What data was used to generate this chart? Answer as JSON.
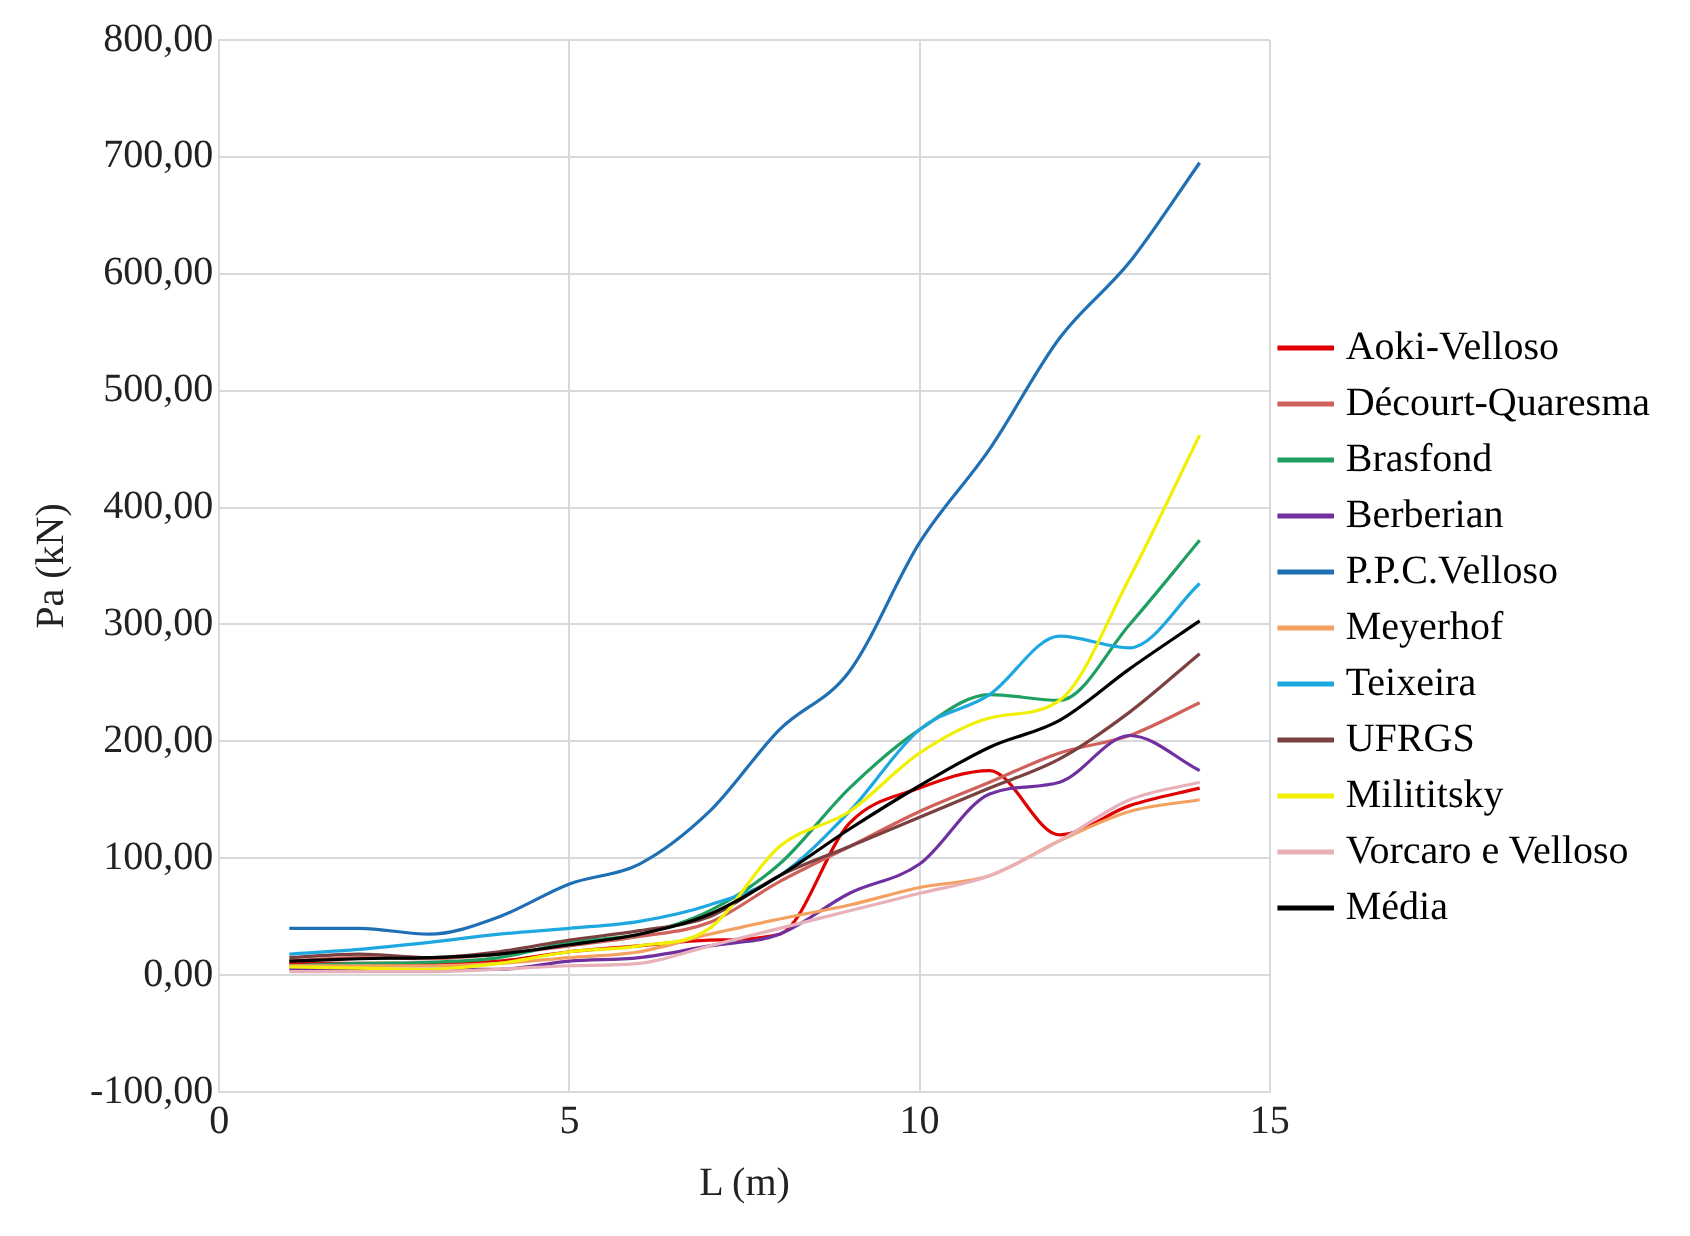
{
  "chart_data": {
    "type": "line",
    "xlabel": "L (m)",
    "ylabel": "Pa (kN)",
    "x": [
      1,
      2,
      3,
      4,
      5,
      6,
      7,
      8,
      9,
      10,
      11,
      12,
      13,
      14
    ],
    "xlim": [
      0,
      15
    ],
    "xticks": [
      0,
      5,
      10,
      15
    ],
    "ylim": [
      -100,
      800
    ],
    "yticks": [
      {
        "value": -100,
        "label": "-100,00"
      },
      {
        "value": 0,
        "label": "0,00"
      },
      {
        "value": 100,
        "label": "100,00"
      },
      {
        "value": 200,
        "label": "200,00"
      },
      {
        "value": 300,
        "label": "300,00"
      },
      {
        "value": 400,
        "label": "400,00"
      },
      {
        "value": 500,
        "label": "500,00"
      },
      {
        "value": 600,
        "label": "600,00"
      },
      {
        "value": 700,
        "label": "700,00"
      },
      {
        "value": 800,
        "label": "800,00"
      }
    ],
    "grid": true,
    "legend": "right",
    "marker": "none",
    "line_style": "solid",
    "series": [
      {
        "name": "Aoki-Velloso",
        "color": "#e00000",
        "values": [
          10,
          10,
          10,
          12,
          20,
          25,
          30,
          35,
          130,
          160,
          175,
          120,
          145,
          160
        ]
      },
      {
        "name": "Décourt-Quaresma",
        "color": "#d0605a",
        "values": [
          12,
          15,
          14,
          18,
          25,
          33,
          45,
          80,
          110,
          140,
          165,
          190,
          205,
          233
        ]
      },
      {
        "name": "Brasfond",
        "color": "#20a060",
        "values": [
          8,
          10,
          11,
          15,
          28,
          35,
          55,
          95,
          160,
          210,
          240,
          235,
          300,
          372
        ]
      },
      {
        "name": "Berberian",
        "color": "#7030a0",
        "values": [
          5,
          5,
          5,
          5,
          12,
          15,
          25,
          35,
          70,
          95,
          155,
          165,
          205,
          175
        ]
      },
      {
        "name": "P.P.C.Velloso",
        "color": "#1f6fb4",
        "values": [
          40,
          40,
          35,
          50,
          78,
          95,
          140,
          210,
          260,
          370,
          450,
          545,
          610,
          695
        ]
      },
      {
        "name": "Meyerhof",
        "color": "#f4a060",
        "values": [
          8,
          8,
          8,
          10,
          15,
          20,
          35,
          48,
          60,
          75,
          85,
          115,
          140,
          150
        ]
      },
      {
        "name": "Teixeira",
        "color": "#1ea8e0",
        "values": [
          18,
          22,
          28,
          35,
          40,
          46,
          60,
          85,
          140,
          210,
          240,
          290,
          280,
          335
        ]
      },
      {
        "name": "UFRGS",
        "color": "#7b4040",
        "values": [
          15,
          18,
          15,
          20,
          30,
          38,
          50,
          85,
          110,
          135,
          160,
          185,
          225,
          275
        ]
      },
      {
        "name": "Milititsky",
        "color": "#f0f000",
        "values": [
          7,
          6,
          5,
          10,
          20,
          25,
          40,
          110,
          140,
          190,
          220,
          235,
          340,
          462
        ]
      },
      {
        "name": "Vorcaro e Velloso",
        "color": "#e8b0b8",
        "values": [
          3,
          3,
          3,
          5,
          8,
          10,
          25,
          40,
          55,
          70,
          85,
          115,
          150,
          165
        ]
      },
      {
        "name": "Média",
        "color": "#000000",
        "values": [
          12,
          14,
          15,
          18,
          26,
          35,
          52,
          85,
          125,
          162,
          195,
          218,
          262,
          303
        ]
      }
    ]
  }
}
